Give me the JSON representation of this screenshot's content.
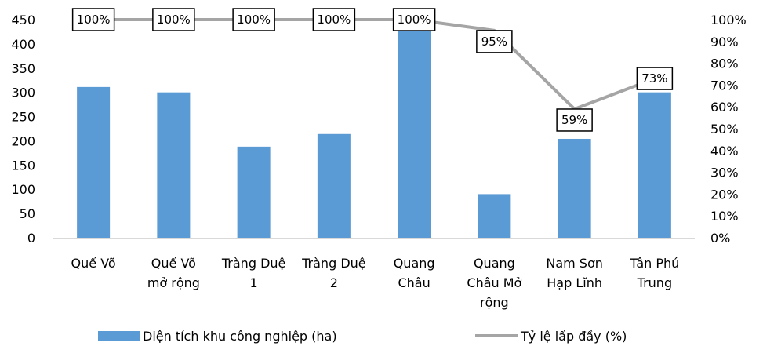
{
  "chart_data": {
    "type": "bar",
    "categories": [
      [
        "Quế Võ"
      ],
      [
        "Quế Võ",
        "mở rộng"
      ],
      [
        "Tràng Duệ",
        "1"
      ],
      [
        "Tràng Duệ",
        "2"
      ],
      [
        "Quang",
        "Châu"
      ],
      [
        "Quang",
        "Châu Mở",
        "rộng"
      ],
      [
        "Nam Sơn",
        "Hạp Lĩnh"
      ],
      [
        "Tân Phú",
        "Trung"
      ]
    ],
    "series": [
      {
        "name": "Diện tích khu công nghiệp (ha)",
        "type": "bar",
        "axis": "left",
        "color": "#5b9bd5",
        "values": [
          311,
          300,
          188,
          214,
          426,
          90,
          204,
          300
        ]
      },
      {
        "name": "Tỷ lệ lấp đầy (%)",
        "type": "line",
        "axis": "right",
        "color": "#a5a5a5",
        "values": [
          100,
          100,
          100,
          100,
          100,
          95,
          59,
          73
        ],
        "data_labels": [
          "100%",
          "100%",
          "100%",
          "100%",
          "100%",
          "95%",
          "59%",
          "73%"
        ]
      }
    ],
    "y_left": {
      "min": 0,
      "max": 450,
      "step": 50,
      "ticks": [
        "0",
        "50",
        "100",
        "150",
        "200",
        "250",
        "300",
        "350",
        "400",
        "450"
      ]
    },
    "y_right": {
      "min": 0,
      "max": 100,
      "step": 10,
      "ticks": [
        "0%",
        "10%",
        "20%",
        "30%",
        "40%",
        "50%",
        "60%",
        "70%",
        "80%",
        "90%",
        "100%"
      ]
    },
    "grid": false,
    "legend_position": "bottom"
  }
}
